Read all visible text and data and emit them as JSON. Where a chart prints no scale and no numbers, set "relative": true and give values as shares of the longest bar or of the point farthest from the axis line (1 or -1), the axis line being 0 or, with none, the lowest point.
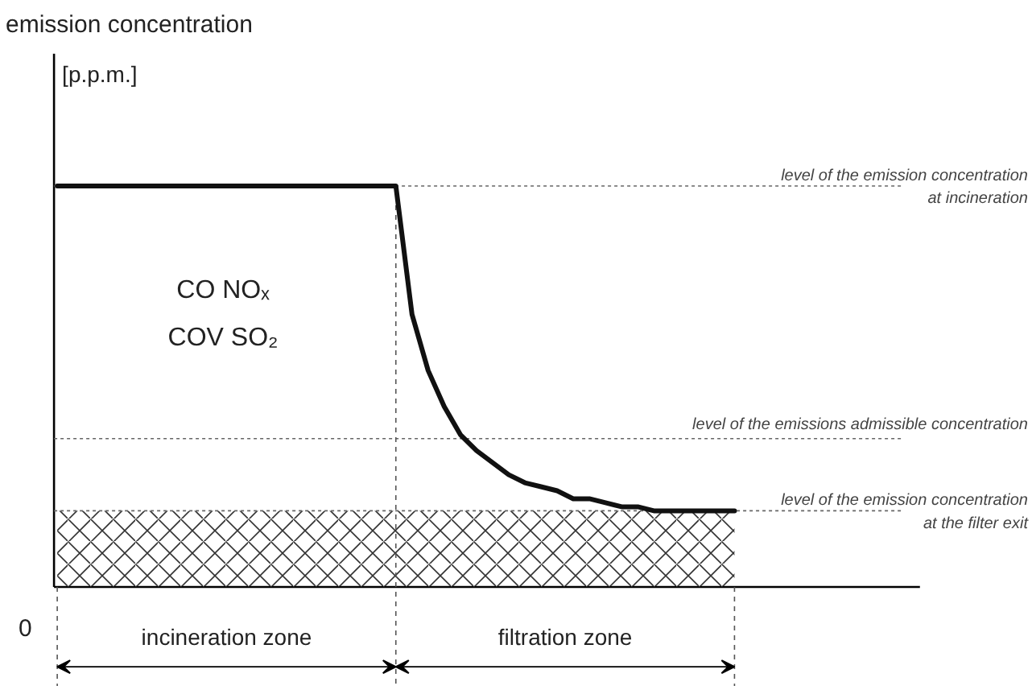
{
  "chart_data": {
    "type": "line",
    "relative": true,
    "tick_labels": false,
    "grid": false,
    "marker": "none",
    "line_style": "solid",
    "categories": [
      null,
      null,
      null,
      null,
      null,
      null,
      null,
      null,
      null,
      null,
      null,
      null,
      null,
      null,
      null,
      null,
      null,
      null,
      null,
      null,
      null,
      null,
      null,
      null,
      null,
      null,
      null,
      null,
      null,
      null,
      null,
      null,
      null,
      null,
      null,
      null,
      null,
      null,
      null,
      null,
      null,
      null,
      null
    ],
    "series": [
      {
        "color": "#111111",
        "values": [
          1,
          1,
          1,
          1,
          1,
          1,
          1,
          1,
          1,
          1,
          1,
          1,
          1,
          1,
          1,
          1,
          1,
          1,
          1,
          1,
          1,
          1,
          0.68,
          0.54,
          0.45,
          0.38,
          0.34,
          0.31,
          0.28,
          0.26,
          0.25,
          0.24,
          0.22,
          0.22,
          0.21,
          0.2,
          0.2,
          0.19,
          0.19,
          0.19,
          0.19,
          0.19,
          0.19
        ]
      }
    ],
    "ref_lines": [
      {
        "axis": "y",
        "value": 1,
        "label": "level of the emission concentration\nat incineration",
        "line_style": "dotted"
      },
      {
        "axis": "y",
        "value": 0.37,
        "label": "level of the emissions admissible concentration",
        "line_style": "dotted"
      },
      {
        "axis": "y",
        "value": 0.19,
        "label": "level of the emission concentration\nat the filter exit",
        "line_style": "dotted"
      }
    ],
    "bands": [
      {
        "axis": "y",
        "from": 0,
        "to": 0.19,
        "label": null,
        "color": "#333333"
      }
    ],
    "annotations": [
      "emission concentration",
      "[p.p.m.]",
      "0",
      "CO  NOₓ",
      "COV  SO₂",
      "incineration zone",
      "filtration zone"
    ]
  }
}
